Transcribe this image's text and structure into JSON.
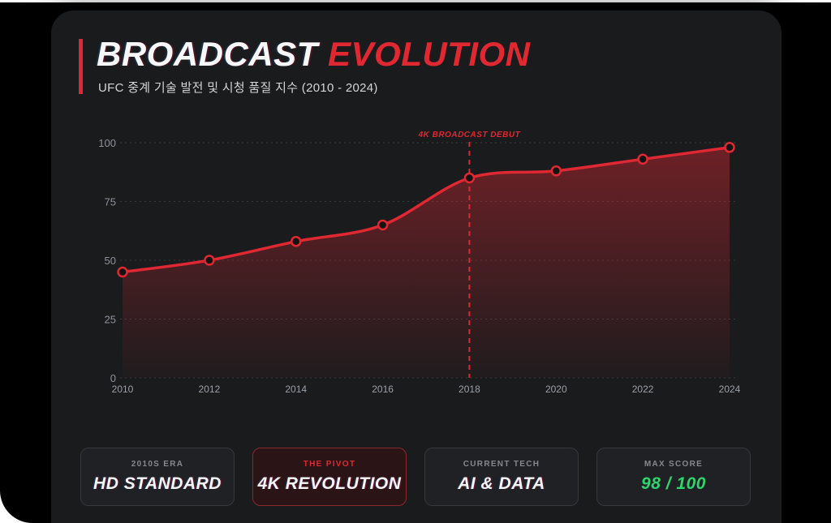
{
  "header": {
    "title_primary": "BROADCAST",
    "title_accent": "EVOLUTION",
    "subtitle": "UFC 중계 기술 발전 및 시청 품질 지수 (2010 - 2024)"
  },
  "chart_data": {
    "type": "line",
    "title": "BROADCAST EVOLUTION",
    "subtitle": "UFC 중계 기술 발전 및 시청 품질 지수 (2010 - 2024)",
    "x_labels": [
      "2010",
      "2012",
      "2014",
      "2016",
      "2018",
      "2020",
      "2022",
      "2024"
    ],
    "values": [
      45,
      50,
      58,
      65,
      85,
      88,
      93,
      98
    ],
    "y_ticks": [
      0,
      25,
      50,
      75,
      100
    ],
    "ylim": [
      0,
      100
    ],
    "grid": true,
    "legend": "none",
    "annotation": {
      "label": "4K BROADCAST DEBUT",
      "x": "2018"
    }
  },
  "colors": {
    "accent_red": "#e02832",
    "score_green": "#2fd46e",
    "point_fill": "#131313",
    "grid": "rgba(255,255,255,0.14)",
    "area_top": "rgba(224,40,50,0.42)",
    "area_bottom": "rgba(224,40,50,0.03)"
  },
  "cards": [
    {
      "label": "2010S ERA",
      "value": "HD STANDARD"
    },
    {
      "label": "THE PIVOT",
      "value": "4K REVOLUTION"
    },
    {
      "label": "CURRENT TECH",
      "value": "AI & DATA"
    },
    {
      "label": "MAX SCORE",
      "value": "98 / 100"
    }
  ]
}
